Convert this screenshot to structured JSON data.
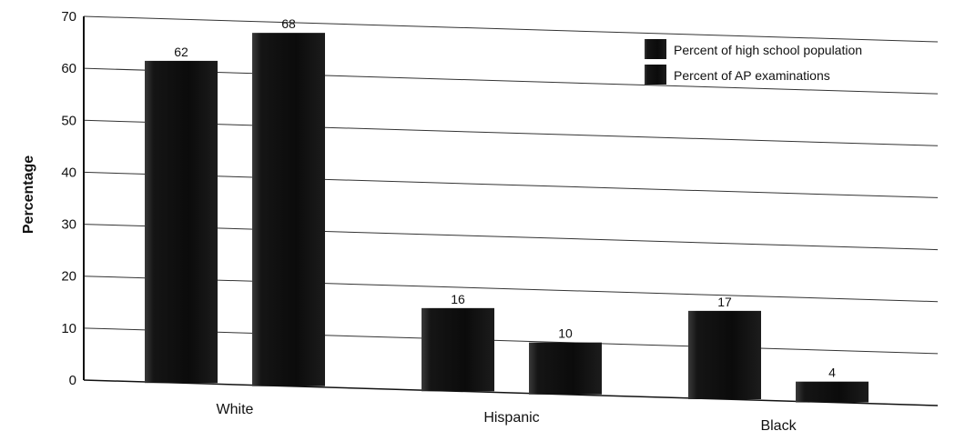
{
  "chart_data": {
    "type": "bar",
    "categories": [
      "White",
      "Hispanic",
      "Black"
    ],
    "series": [
      {
        "name": "Percent of high school population",
        "values": [
          62,
          16,
          17
        ]
      },
      {
        "name": "Percent of AP examinations",
        "values": [
          68,
          10,
          4
        ]
      }
    ],
    "ylabel": "Percentage",
    "xlabel": "",
    "ylim": [
      0,
      70
    ],
    "yticks": [
      0,
      10,
      20,
      30,
      40,
      50,
      60,
      70
    ],
    "grid": true,
    "legend_position": "top-right",
    "colors": {
      "bar": "#111111",
      "grid": "#333333"
    }
  }
}
